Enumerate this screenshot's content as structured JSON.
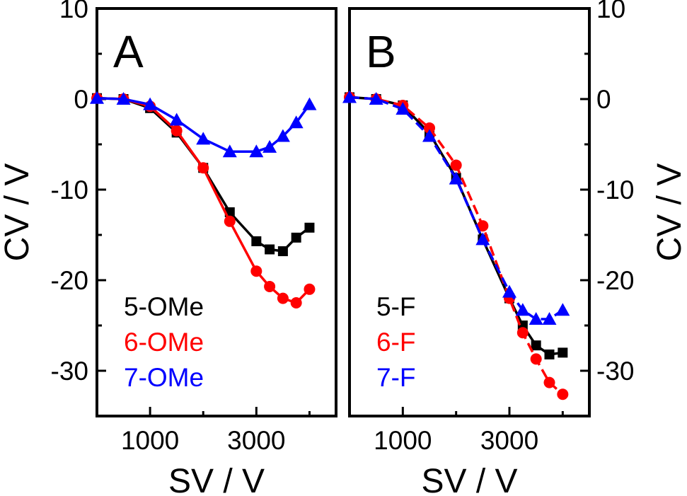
{
  "chart_data": [
    {
      "type": "line",
      "panel_label": "A",
      "xlabel": "SV / V",
      "ylabel": "CV / V",
      "xlim": [
        0,
        4500
      ],
      "ylim": [
        -35,
        10
      ],
      "x_ticks": [
        1000,
        3000
      ],
      "x_tick_labels": [
        "1000",
        "3000"
      ],
      "y_ticks": [
        10,
        0,
        -10,
        -20,
        -30
      ],
      "y_tick_labels": [
        "10",
        "0",
        "-10",
        "-20",
        "-30"
      ],
      "ytick_side": "left",
      "ylabel_side": "left",
      "grid": false,
      "legend_position": "bottom-left",
      "series": [
        {
          "name": "5-OMe",
          "color": "#000000",
          "marker": "square",
          "dashed": false,
          "x": [
            0,
            500,
            1000,
            1500,
            2000,
            2500,
            3000,
            3250,
            3500,
            3750,
            4000
          ],
          "y": [
            0.1,
            0,
            -1,
            -3.7,
            -7.6,
            -12.5,
            -15.7,
            -16.6,
            -16.8,
            -15.3,
            -14.2
          ]
        },
        {
          "name": "6-OMe",
          "color": "#ff0000",
          "marker": "circle",
          "dashed": false,
          "x": [
            0,
            500,
            1000,
            1500,
            2000,
            2500,
            3000,
            3250,
            3500,
            3750,
            4000
          ],
          "y": [
            0.1,
            0,
            -0.8,
            -3.5,
            -7.6,
            -13.5,
            -19,
            -20.7,
            -22,
            -22.5,
            -21
          ]
        },
        {
          "name": "7-OMe",
          "color": "#0000ff",
          "marker": "triangle",
          "dashed": false,
          "x": [
            0,
            500,
            1000,
            1500,
            2000,
            2500,
            3000,
            3250,
            3500,
            3750,
            4000
          ],
          "y": [
            0.1,
            0,
            -0.6,
            -2.3,
            -4.4,
            -5.8,
            -5.8,
            -5.3,
            -4.1,
            -2.6,
            -0.6
          ]
        }
      ]
    },
    {
      "type": "line",
      "panel_label": "B",
      "xlabel": "SV / V",
      "ylabel": "CV / V",
      "xlim": [
        0,
        4500
      ],
      "ylim": [
        -35,
        10
      ],
      "x_ticks": [
        1000,
        3000
      ],
      "x_tick_labels": [
        "1000",
        "3000"
      ],
      "y_ticks": [
        10,
        0,
        -10,
        -20,
        -30
      ],
      "y_tick_labels": [
        "10",
        "0",
        "-10",
        "-20",
        "-30"
      ],
      "ytick_side": "right",
      "ylabel_side": "right",
      "grid": false,
      "legend_position": "bottom-left",
      "series": [
        {
          "name": "5-F",
          "color": "#000000",
          "marker": "square",
          "dashed": false,
          "x": [
            0,
            500,
            1000,
            1500,
            2000,
            2500,
            3000,
            3250,
            3500,
            3750,
            4000
          ],
          "y": [
            0.2,
            0,
            -0.7,
            -3.8,
            -8.7,
            -15.5,
            -22,
            -25,
            -27.2,
            -28.2,
            -28
          ]
        },
        {
          "name": "6-F",
          "color": "#ff0000",
          "marker": "circle",
          "dashed": true,
          "x": [
            0,
            500,
            1000,
            1500,
            2000,
            2500,
            3000,
            3250,
            3500,
            3750,
            4000
          ],
          "y": [
            0.2,
            0,
            -0.7,
            -3.2,
            -7.3,
            -14,
            -22,
            -25.8,
            -28.7,
            -31.3,
            -32.6
          ]
        },
        {
          "name": "7-F",
          "color": "#0000ff",
          "marker": "triangle",
          "dashed": true,
          "x": [
            0,
            500,
            1000,
            1500,
            2000,
            2500,
            3000,
            3250,
            3500,
            3750,
            4000
          ],
          "y": [
            0.2,
            0,
            -1.1,
            -4.1,
            -8.8,
            -15.5,
            -21.3,
            -23.3,
            -24.3,
            -24.3,
            -23.3
          ]
        }
      ]
    }
  ]
}
